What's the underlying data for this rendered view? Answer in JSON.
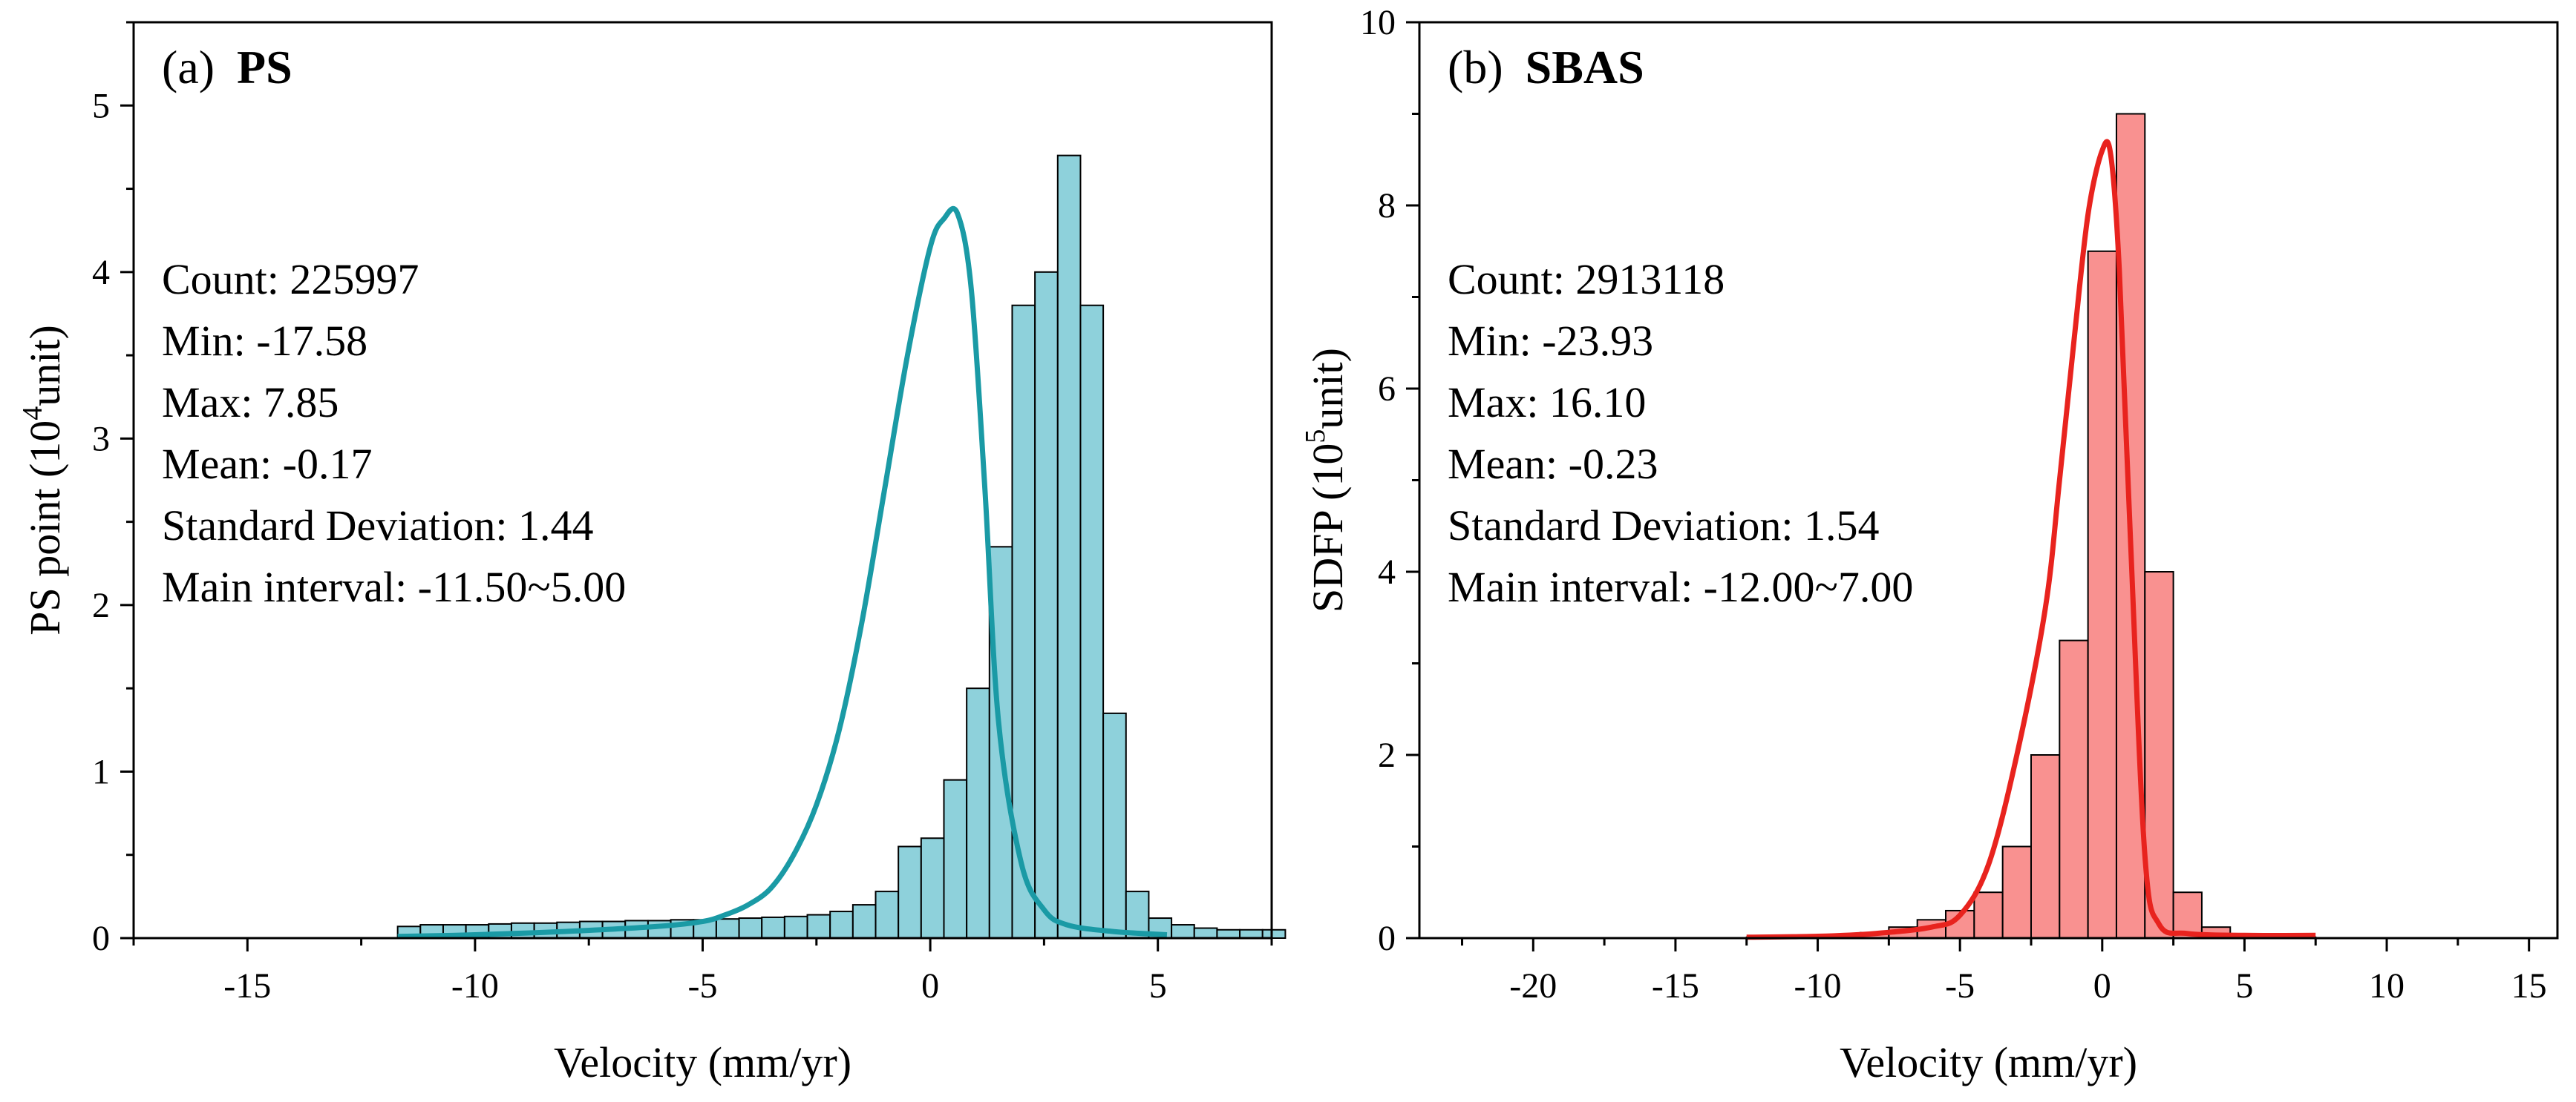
{
  "chart_data": [
    {
      "type": "bar",
      "panel_label": "(a)",
      "panel_name": "PS",
      "xlabel": "Velocity (mm/yr)",
      "ylabel_main": "PS point (10",
      "ylabel_sup": "4",
      "ylabel_tail": "unit)",
      "xlim": [
        -17.5,
        7.5
      ],
      "ylim": [
        0,
        5.5
      ],
      "xticks": [
        -15,
        -10,
        -5,
        0,
        5
      ],
      "yticks": [
        0,
        1,
        2,
        3,
        4,
        5
      ],
      "bin_width": 0.5,
      "bin_start": -11.7,
      "values": [
        0.07,
        0.08,
        0.08,
        0.08,
        0.085,
        0.09,
        0.09,
        0.095,
        0.1,
        0.1,
        0.105,
        0.105,
        0.11,
        0.11,
        0.115,
        0.12,
        0.125,
        0.13,
        0.14,
        0.16,
        0.2,
        0.28,
        0.55,
        0.6,
        0.95,
        1.5,
        2.35,
        3.8,
        4.0,
        4.7,
        3.8,
        1.35,
        0.28,
        0.12,
        0.08,
        0.06,
        0.05,
        0.05,
        0.05
      ],
      "curve": {
        "x": [
          -11.7,
          -10,
          -8,
          -6,
          -5,
          -4.5,
          -4,
          -3.5,
          -3,
          -2.5,
          -2,
          -1.5,
          -1,
          -0.5,
          0,
          0.3,
          0.6,
          0.9,
          1.2,
          1.5,
          2,
          2.5,
          3,
          4,
          5.2
        ],
        "y": [
          0.01,
          0.02,
          0.04,
          0.07,
          0.1,
          0.14,
          0.2,
          0.3,
          0.5,
          0.8,
          1.25,
          1.9,
          2.7,
          3.5,
          4.15,
          4.32,
          4.35,
          3.9,
          2.7,
          1.3,
          0.45,
          0.17,
          0.08,
          0.04,
          0.02
        ]
      },
      "bar_color": "#8ED1DB",
      "curve_color": "#1A9AA5",
      "stats": [
        "Count: 225997",
        "Min: -17.58",
        "Max: 7.85",
        "Mean: -0.17",
        "Standard Deviation: 1.44",
        "Main interval: -11.50~5.00"
      ]
    },
    {
      "type": "bar",
      "panel_label": "(b)",
      "panel_name": "SBAS",
      "xlabel": "Velocity (mm/yr)",
      "ylabel_main": "SDFP (10",
      "ylabel_sup": "5",
      "ylabel_tail": "unit)",
      "xlim": [
        -24,
        16
      ],
      "ylim": [
        0,
        10
      ],
      "xticks": [
        -20,
        -15,
        -10,
        -5,
        0,
        5,
        10,
        15
      ],
      "yticks": [
        0,
        2,
        4,
        6,
        8,
        10
      ],
      "bin_width": 1.0,
      "bin_start": -12.5,
      "values": [
        0.01,
        0.01,
        0.02,
        0.03,
        0.06,
        0.12,
        0.2,
        0.3,
        0.5,
        1.0,
        2.0,
        3.25,
        7.5,
        9.0,
        4.0,
        0.5,
        0.12,
        0.03,
        0.01,
        0.01
      ],
      "curve": {
        "x": [
          -12.5,
          -10,
          -8,
          -6,
          -5,
          -4,
          -3,
          -2,
          -1.5,
          -1,
          -0.5,
          0,
          0.3,
          0.6,
          1,
          1.5,
          2,
          3,
          5,
          7.5
        ],
        "y": [
          0.01,
          0.02,
          0.05,
          0.12,
          0.25,
          0.8,
          2.0,
          3.6,
          5.0,
          6.5,
          7.9,
          8.6,
          8.55,
          7.3,
          4.3,
          0.9,
          0.15,
          0.05,
          0.03,
          0.03
        ]
      },
      "bar_color": "#F99190",
      "curve_color": "#E8231E",
      "stats": [
        "Count: 2913118",
        "Min: -23.93",
        "Max: 16.10",
        "Mean: -0.23",
        "Standard Deviation: 1.54",
        "Main interval: -12.00~7.00"
      ]
    }
  ]
}
